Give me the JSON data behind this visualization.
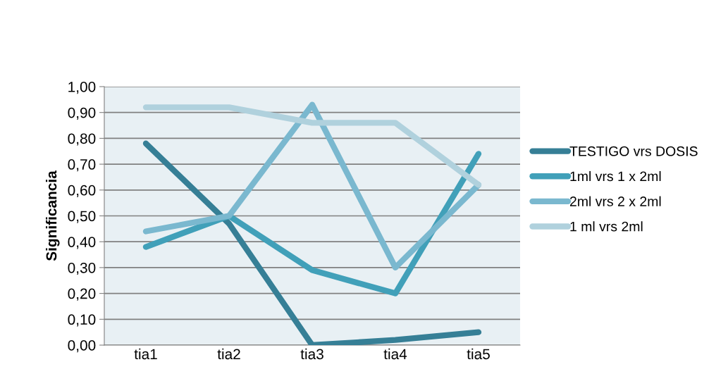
{
  "chart_data": {
    "type": "line",
    "ylabel": "Significancia",
    "categories": [
      "tia1",
      "tia2",
      "tia3",
      "tia4",
      "tia5"
    ],
    "series": [
      {
        "name": "TESTIGO vrs DOSIS",
        "color": "#367f96",
        "values": [
          0.78,
          0.47,
          0.0,
          0.02,
          0.05
        ]
      },
      {
        "name": "1ml vrs 1 x 2ml",
        "color": "#41a0b9",
        "values": [
          0.38,
          0.5,
          0.29,
          0.2,
          0.74
        ]
      },
      {
        "name": "2ml vrs 2 x 2ml",
        "color": "#7ab8cf",
        "values": [
          0.44,
          0.5,
          0.93,
          0.3,
          0.62
        ]
      },
      {
        "name": "1 ml vrs 2ml",
        "color": "#b0d1dd",
        "values": [
          0.92,
          0.92,
          0.86,
          0.86,
          0.62
        ]
      }
    ],
    "ylim": [
      0,
      1
    ],
    "yticks": [
      {
        "value": 0,
        "label": "0,00"
      },
      {
        "value": 0.1,
        "label": "0,10"
      },
      {
        "value": 0.2,
        "label": "0,20"
      },
      {
        "value": 0.3,
        "label": "0,30"
      },
      {
        "value": 0.4,
        "label": "0,40"
      },
      {
        "value": 0.5,
        "label": "0,50"
      },
      {
        "value": 0.6,
        "label": "0,60"
      },
      {
        "value": 0.7,
        "label": "0,70"
      },
      {
        "value": 0.8,
        "label": "0,80"
      },
      {
        "value": 0.9,
        "label": "0,90"
      },
      {
        "value": 1,
        "label": "1,00"
      }
    ],
    "grid": "y",
    "legend": "right",
    "marker": "none",
    "line_style": "solid"
  }
}
